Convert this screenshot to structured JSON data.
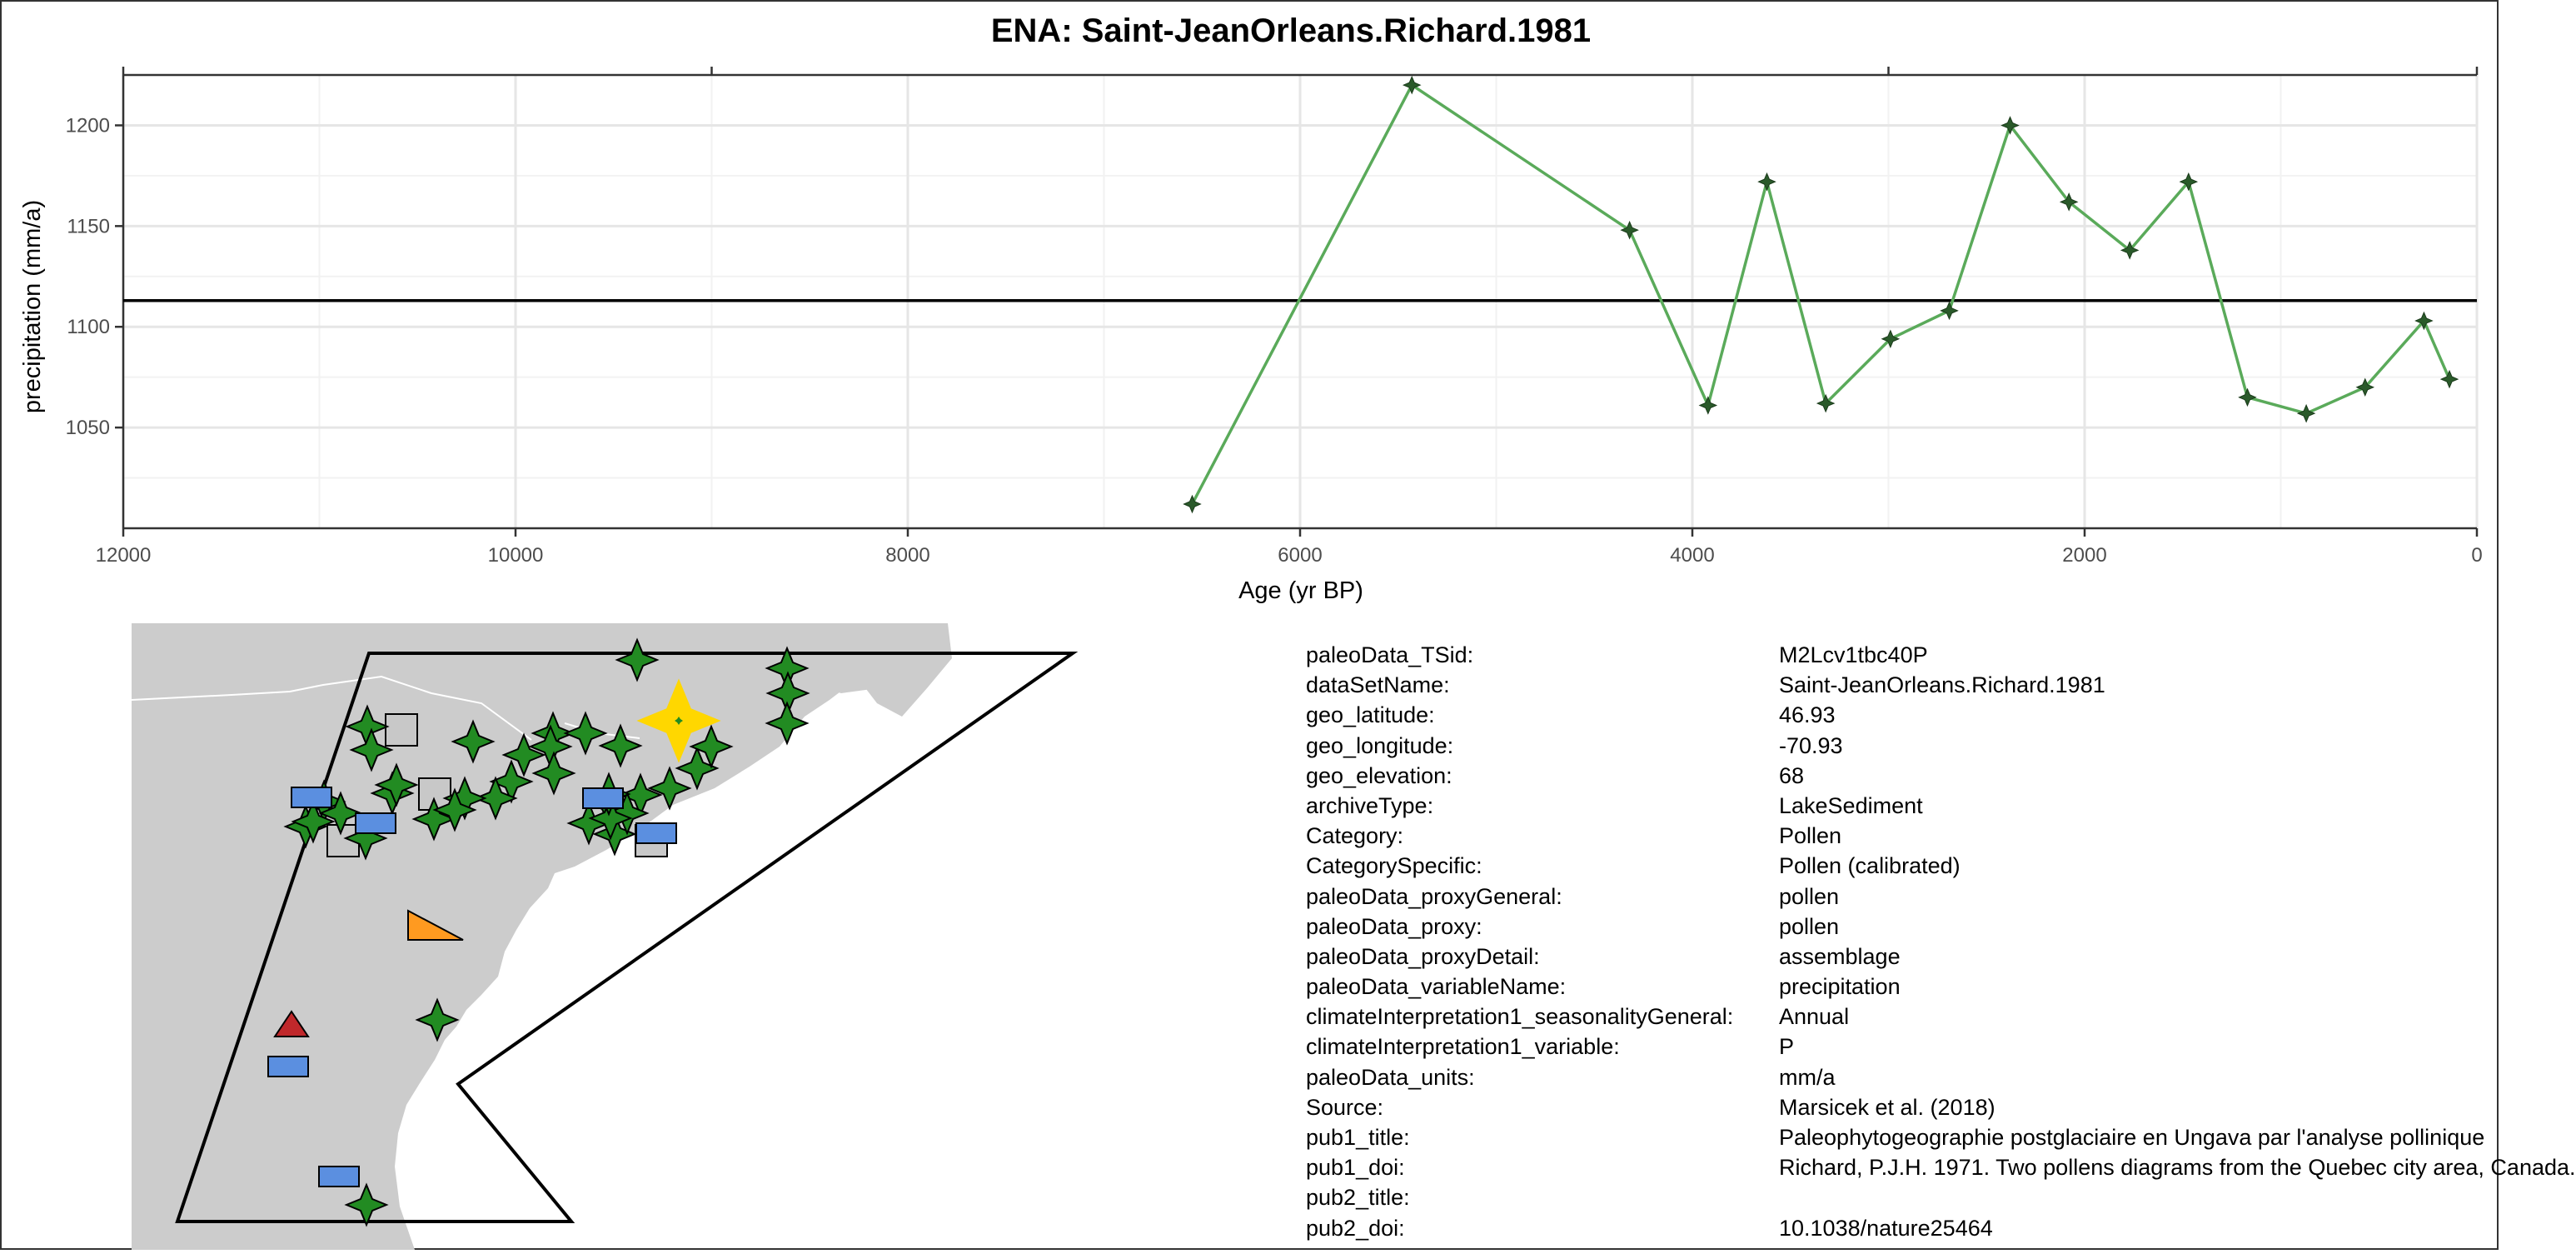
{
  "chart_data": {
    "type": "line",
    "title": "ENA: Saint-JeanOrleans.Richard.1981",
    "xlabel": "Age (yr BP)",
    "ylabel": "precipitation (mm/a)",
    "xlim": [
      12000,
      0
    ],
    "ylim": [
      1000,
      1225
    ],
    "x_reversed": true,
    "grid": true,
    "x_ticks": [
      12000,
      10000,
      8000,
      6000,
      4000,
      2000,
      0
    ],
    "x_tick_labels": [
      "12000",
      "10000",
      "8000",
      "6000",
      "4000",
      "2000",
      "0"
    ],
    "y_ticks": [
      1050,
      1100,
      1150,
      1200
    ],
    "y_tick_labels": [
      "1050",
      "1100",
      "1150",
      "1200"
    ],
    "reference_line": 1113,
    "line_color": "#5aaa5a",
    "marker_color": "#2a5a2a",
    "reference_color": "#000000",
    "series": [
      {
        "x": [
          6550,
          5430,
          4320,
          3920,
          3620,
          3320,
          2990,
          2690,
          2380,
          2080,
          1770,
          1470,
          1170,
          870,
          570,
          270,
          140
        ],
        "y": [
          1012,
          1220,
          1148,
          1061,
          1172,
          1062,
          1094,
          1108,
          1200,
          1162,
          1138,
          1172,
          1065,
          1057,
          1070,
          1103,
          1074
        ]
      }
    ]
  },
  "map": {
    "land_color": "#cccccc",
    "marker_legend": [
      {
        "shape": "star",
        "color": "#228b22"
      },
      {
        "shape": "rectangle",
        "color": "#5b8fe0"
      },
      {
        "shape": "square",
        "color": "#c8c8c8"
      },
      {
        "shape": "triangle",
        "color": "#c0282b"
      },
      {
        "shape": "right-triangle",
        "color": "#ff9a20"
      },
      {
        "shape": "highlight-star",
        "color": "#ffd700"
      }
    ]
  },
  "metadata": [
    {
      "key": "paleoData_TSid:",
      "value": "M2Lcv1tbc40P"
    },
    {
      "key": "dataSetName:",
      "value": "Saint-JeanOrleans.Richard.1981"
    },
    {
      "key": "geo_latitude:",
      "value": "46.93"
    },
    {
      "key": "geo_longitude:",
      "value": "-70.93"
    },
    {
      "key": "geo_elevation:",
      "value": "68"
    },
    {
      "key": "archiveType:",
      "value": "LakeSediment"
    },
    {
      "key": "Category:",
      "value": "Pollen"
    },
    {
      "key": "CategorySpecific:",
      "value": "Pollen (calibrated)"
    },
    {
      "key": "paleoData_proxyGeneral:",
      "value": "pollen"
    },
    {
      "key": "paleoData_proxy:",
      "value": "pollen"
    },
    {
      "key": "paleoData_proxyDetail:",
      "value": "assemblage"
    },
    {
      "key": "paleoData_variableName:",
      "value": "precipitation"
    },
    {
      "key": "climateInterpretation1_seasonalityGeneral:",
      "value": "Annual"
    },
    {
      "key": "climateInterpretation1_variable:",
      "value": "P"
    },
    {
      "key": "paleoData_units:",
      "value": "mm/a"
    },
    {
      "key": "Source:",
      "value": "Marsicek et al. (2018)"
    },
    {
      "key": "pub1_title:",
      "value": "Paleophytogeographie postglaciaire en Ungava par l'analyse pollinique"
    },
    {
      "key": "pub1_doi:",
      "value": "Richard, P.J.H. 1971. Two pollens diagrams from the Quebec city area, Canada."
    },
    {
      "key": "pub2_title:",
      "value": ""
    },
    {
      "key": "pub2_doi:",
      "value": "10.1038/nature25464"
    }
  ]
}
